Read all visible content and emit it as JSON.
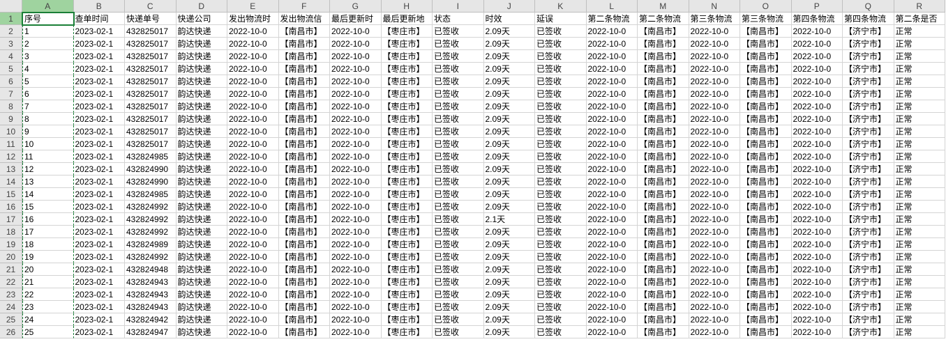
{
  "columns": [
    "A",
    "B",
    "C",
    "D",
    "E",
    "F",
    "G",
    "H",
    "I",
    "J",
    "K",
    "L",
    "M",
    "N",
    "O",
    "P",
    "Q",
    "R"
  ],
  "selected_column_index": 0,
  "active_cell": {
    "row": 0,
    "col": 0
  },
  "headers_row": [
    "序号",
    "查单时间",
    "快递单号",
    "快递公司",
    "发出物流时",
    "发出物流信",
    "最后更新时",
    "最后更新地",
    "状态",
    "时效",
    "延误",
    "第二条物流",
    "第二条物流",
    "第三条物流",
    "第三条物流",
    "第四条物流",
    "第四条物流",
    "第二条是否"
  ],
  "data_rows": [
    {
      "seq": "1",
      "query_time": "2023-02-1",
      "tracking": "432825017",
      "courier": "韵达快递",
      "send_time": "2022-10-0",
      "send_loc": "【南昌市】",
      "last_time": "2022-10-0",
      "last_loc": "【枣庄市】",
      "status": "已签收",
      "duration": "2.09天",
      "delay": "已签收",
      "t2": "2022-10-0",
      "l2": "【南昌市】",
      "t3": "2022-10-0",
      "l3": "【南昌市】",
      "t4": "2022-10-0",
      "l4": "【济宁市】",
      "f2": "正常",
      "tail": "正"
    },
    {
      "seq": "2",
      "query_time": "2023-02-1",
      "tracking": "432825017",
      "courier": "韵达快递",
      "send_time": "2022-10-0",
      "send_loc": "【南昌市】",
      "last_time": "2022-10-0",
      "last_loc": "【枣庄市】",
      "status": "已签收",
      "duration": "2.09天",
      "delay": "已签收",
      "t2": "2022-10-0",
      "l2": "【南昌市】",
      "t3": "2022-10-0",
      "l3": "【南昌市】",
      "t4": "2022-10-0",
      "l4": "【济宁市】",
      "f2": "正常",
      "tail": "正"
    },
    {
      "seq": "3",
      "query_time": "2023-02-1",
      "tracking": "432825017",
      "courier": "韵达快递",
      "send_time": "2022-10-0",
      "send_loc": "【南昌市】",
      "last_time": "2022-10-0",
      "last_loc": "【枣庄市】",
      "status": "已签收",
      "duration": "2.09天",
      "delay": "已签收",
      "t2": "2022-10-0",
      "l2": "【南昌市】",
      "t3": "2022-10-0",
      "l3": "【南昌市】",
      "t4": "2022-10-0",
      "l4": "【济宁市】",
      "f2": "正常",
      "tail": "正"
    },
    {
      "seq": "4",
      "query_time": "2023-02-1",
      "tracking": "432825017",
      "courier": "韵达快递",
      "send_time": "2022-10-0",
      "send_loc": "【南昌市】",
      "last_time": "2022-10-0",
      "last_loc": "【枣庄市】",
      "status": "已签收",
      "duration": "2.09天",
      "delay": "已签收",
      "t2": "2022-10-0",
      "l2": "【南昌市】",
      "t3": "2022-10-0",
      "l3": "【南昌市】",
      "t4": "2022-10-0",
      "l4": "【济宁市】",
      "f2": "正常",
      "tail": "正"
    },
    {
      "seq": "5",
      "query_time": "2023-02-1",
      "tracking": "432825017",
      "courier": "韵达快递",
      "send_time": "2022-10-0",
      "send_loc": "【南昌市】",
      "last_time": "2022-10-0",
      "last_loc": "【枣庄市】",
      "status": "已签收",
      "duration": "2.09天",
      "delay": "已签收",
      "t2": "2022-10-0",
      "l2": "【南昌市】",
      "t3": "2022-10-0",
      "l3": "【南昌市】",
      "t4": "2022-10-0",
      "l4": "【济宁市】",
      "f2": "正常",
      "tail": "正"
    },
    {
      "seq": "6",
      "query_time": "2023-02-1",
      "tracking": "432825017",
      "courier": "韵达快递",
      "send_time": "2022-10-0",
      "send_loc": "【南昌市】",
      "last_time": "2022-10-0",
      "last_loc": "【枣庄市】",
      "status": "已签收",
      "duration": "2.09天",
      "delay": "已签收",
      "t2": "2022-10-0",
      "l2": "【南昌市】",
      "t3": "2022-10-0",
      "l3": "【南昌市】",
      "t4": "2022-10-0",
      "l4": "【济宁市】",
      "f2": "正常",
      "tail": "正"
    },
    {
      "seq": "7",
      "query_time": "2023-02-1",
      "tracking": "432825017",
      "courier": "韵达快递",
      "send_time": "2022-10-0",
      "send_loc": "【南昌市】",
      "last_time": "2022-10-0",
      "last_loc": "【枣庄市】",
      "status": "已签收",
      "duration": "2.09天",
      "delay": "已签收",
      "t2": "2022-10-0",
      "l2": "【南昌市】",
      "t3": "2022-10-0",
      "l3": "【南昌市】",
      "t4": "2022-10-0",
      "l4": "【济宁市】",
      "f2": "正常",
      "tail": "正"
    },
    {
      "seq": "8",
      "query_time": "2023-02-1",
      "tracking": "432825017",
      "courier": "韵达快递",
      "send_time": "2022-10-0",
      "send_loc": "【南昌市】",
      "last_time": "2022-10-0",
      "last_loc": "【枣庄市】",
      "status": "已签收",
      "duration": "2.09天",
      "delay": "已签收",
      "t2": "2022-10-0",
      "l2": "【南昌市】",
      "t3": "2022-10-0",
      "l3": "【南昌市】",
      "t4": "2022-10-0",
      "l4": "【济宁市】",
      "f2": "正常",
      "tail": "正"
    },
    {
      "seq": "9",
      "query_time": "2023-02-1",
      "tracking": "432825017",
      "courier": "韵达快递",
      "send_time": "2022-10-0",
      "send_loc": "【南昌市】",
      "last_time": "2022-10-0",
      "last_loc": "【枣庄市】",
      "status": "已签收",
      "duration": "2.09天",
      "delay": "已签收",
      "t2": "2022-10-0",
      "l2": "【南昌市】",
      "t3": "2022-10-0",
      "l3": "【南昌市】",
      "t4": "2022-10-0",
      "l4": "【济宁市】",
      "f2": "正常",
      "tail": "正"
    },
    {
      "seq": "10",
      "query_time": "2023-02-1",
      "tracking": "432825017",
      "courier": "韵达快递",
      "send_time": "2022-10-0",
      "send_loc": "【南昌市】",
      "last_time": "2022-10-0",
      "last_loc": "【枣庄市】",
      "status": "已签收",
      "duration": "2.09天",
      "delay": "已签收",
      "t2": "2022-10-0",
      "l2": "【南昌市】",
      "t3": "2022-10-0",
      "l3": "【南昌市】",
      "t4": "2022-10-0",
      "l4": "【济宁市】",
      "f2": "正常",
      "tail": "正"
    },
    {
      "seq": "11",
      "query_time": "2023-02-1",
      "tracking": "432824985",
      "courier": "韵达快递",
      "send_time": "2022-10-0",
      "send_loc": "【南昌市】",
      "last_time": "2022-10-0",
      "last_loc": "【枣庄市】",
      "status": "已签收",
      "duration": "2.09天",
      "delay": "已签收",
      "t2": "2022-10-0",
      "l2": "【南昌市】",
      "t3": "2022-10-0",
      "l3": "【南昌市】",
      "t4": "2022-10-0",
      "l4": "【济宁市】",
      "f2": "正常",
      "tail": "正"
    },
    {
      "seq": "12",
      "query_time": "2023-02-1",
      "tracking": "432824990",
      "courier": "韵达快递",
      "send_time": "2022-10-0",
      "send_loc": "【南昌市】",
      "last_time": "2022-10-0",
      "last_loc": "【枣庄市】",
      "status": "已签收",
      "duration": "2.09天",
      "delay": "已签收",
      "t2": "2022-10-0",
      "l2": "【南昌市】",
      "t3": "2022-10-0",
      "l3": "【南昌市】",
      "t4": "2022-10-0",
      "l4": "【济宁市】",
      "f2": "正常",
      "tail": "正"
    },
    {
      "seq": "13",
      "query_time": "2023-02-1",
      "tracking": "432824990",
      "courier": "韵达快递",
      "send_time": "2022-10-0",
      "send_loc": "【南昌市】",
      "last_time": "2022-10-0",
      "last_loc": "【枣庄市】",
      "status": "已签收",
      "duration": "2.09天",
      "delay": "已签收",
      "t2": "2022-10-0",
      "l2": "【南昌市】",
      "t3": "2022-10-0",
      "l3": "【南昌市】",
      "t4": "2022-10-0",
      "l4": "【济宁市】",
      "f2": "正常",
      "tail": "正"
    },
    {
      "seq": "14",
      "query_time": "2023-02-1",
      "tracking": "432824985",
      "courier": "韵达快递",
      "send_time": "2022-10-0",
      "send_loc": "【南昌市】",
      "last_time": "2022-10-0",
      "last_loc": "【枣庄市】",
      "status": "已签收",
      "duration": "2.09天",
      "delay": "已签收",
      "t2": "2022-10-0",
      "l2": "【南昌市】",
      "t3": "2022-10-0",
      "l3": "【南昌市】",
      "t4": "2022-10-0",
      "l4": "【济宁市】",
      "f2": "正常",
      "tail": "正"
    },
    {
      "seq": "15",
      "query_time": "2023-02-1",
      "tracking": "432824992",
      "courier": "韵达快递",
      "send_time": "2022-10-0",
      "send_loc": "【南昌市】",
      "last_time": "2022-10-0",
      "last_loc": "【枣庄市】",
      "status": "已签收",
      "duration": "2.09天",
      "delay": "已签收",
      "t2": "2022-10-0",
      "l2": "【南昌市】",
      "t3": "2022-10-0",
      "l3": "【南昌市】",
      "t4": "2022-10-0",
      "l4": "【济宁市】",
      "f2": "正常",
      "tail": "正"
    },
    {
      "seq": "16",
      "query_time": "2023-02-1",
      "tracking": "432824992",
      "courier": "韵达快递",
      "send_time": "2022-10-0",
      "send_loc": "【南昌市】",
      "last_time": "2022-10-0",
      "last_loc": "【枣庄市】",
      "status": "已签收",
      "duration": "2.1天",
      "delay": "已签收",
      "t2": "2022-10-0",
      "l2": "【南昌市】",
      "t3": "2022-10-0",
      "l3": "【南昌市】",
      "t4": "2022-10-0",
      "l4": "【济宁市】",
      "f2": "正常",
      "tail": "正"
    },
    {
      "seq": "17",
      "query_time": "2023-02-1",
      "tracking": "432824992",
      "courier": "韵达快递",
      "send_time": "2022-10-0",
      "send_loc": "【南昌市】",
      "last_time": "2022-10-0",
      "last_loc": "【枣庄市】",
      "status": "已签收",
      "duration": "2.09天",
      "delay": "已签收",
      "t2": "2022-10-0",
      "l2": "【南昌市】",
      "t3": "2022-10-0",
      "l3": "【南昌市】",
      "t4": "2022-10-0",
      "l4": "【济宁市】",
      "f2": "正常",
      "tail": "正"
    },
    {
      "seq": "18",
      "query_time": "2023-02-1",
      "tracking": "432824989",
      "courier": "韵达快递",
      "send_time": "2022-10-0",
      "send_loc": "【南昌市】",
      "last_time": "2022-10-0",
      "last_loc": "【枣庄市】",
      "status": "已签收",
      "duration": "2.09天",
      "delay": "已签收",
      "t2": "2022-10-0",
      "l2": "【南昌市】",
      "t3": "2022-10-0",
      "l3": "【南昌市】",
      "t4": "2022-10-0",
      "l4": "【济宁市】",
      "f2": "正常",
      "tail": "正"
    },
    {
      "seq": "19",
      "query_time": "2023-02-1",
      "tracking": "432824992",
      "courier": "韵达快递",
      "send_time": "2022-10-0",
      "send_loc": "【南昌市】",
      "last_time": "2022-10-0",
      "last_loc": "【枣庄市】",
      "status": "已签收",
      "duration": "2.09天",
      "delay": "已签收",
      "t2": "2022-10-0",
      "l2": "【南昌市】",
      "t3": "2022-10-0",
      "l3": "【南昌市】",
      "t4": "2022-10-0",
      "l4": "【济宁市】",
      "f2": "正常",
      "tail": "正"
    },
    {
      "seq": "20",
      "query_time": "2023-02-1",
      "tracking": "432824948",
      "courier": "韵达快递",
      "send_time": "2022-10-0",
      "send_loc": "【南昌市】",
      "last_time": "2022-10-0",
      "last_loc": "【枣庄市】",
      "status": "已签收",
      "duration": "2.09天",
      "delay": "已签收",
      "t2": "2022-10-0",
      "l2": "【南昌市】",
      "t3": "2022-10-0",
      "l3": "【南昌市】",
      "t4": "2022-10-0",
      "l4": "【济宁市】",
      "f2": "正常",
      "tail": "正"
    },
    {
      "seq": "21",
      "query_time": "2023-02-1",
      "tracking": "432824943",
      "courier": "韵达快递",
      "send_time": "2022-10-0",
      "send_loc": "【南昌市】",
      "last_time": "2022-10-0",
      "last_loc": "【枣庄市】",
      "status": "已签收",
      "duration": "2.09天",
      "delay": "已签收",
      "t2": "2022-10-0",
      "l2": "【南昌市】",
      "t3": "2022-10-0",
      "l3": "【南昌市】",
      "t4": "2022-10-0",
      "l4": "【济宁市】",
      "f2": "正常",
      "tail": "正"
    },
    {
      "seq": "22",
      "query_time": "2023-02-1",
      "tracking": "432824943",
      "courier": "韵达快递",
      "send_time": "2022-10-0",
      "send_loc": "【南昌市】",
      "last_time": "2022-10-0",
      "last_loc": "【枣庄市】",
      "status": "已签收",
      "duration": "2.09天",
      "delay": "已签收",
      "t2": "2022-10-0",
      "l2": "【南昌市】",
      "t3": "2022-10-0",
      "l3": "【南昌市】",
      "t4": "2022-10-0",
      "l4": "【济宁市】",
      "f2": "正常",
      "tail": "正"
    },
    {
      "seq": "23",
      "query_time": "2023-02-1",
      "tracking": "432824943",
      "courier": "韵达快递",
      "send_time": "2022-10-0",
      "send_loc": "【南昌市】",
      "last_time": "2022-10-0",
      "last_loc": "【枣庄市】",
      "status": "已签收",
      "duration": "2.09天",
      "delay": "已签收",
      "t2": "2022-10-0",
      "l2": "【南昌市】",
      "t3": "2022-10-0",
      "l3": "【南昌市】",
      "t4": "2022-10-0",
      "l4": "【济宁市】",
      "f2": "正常",
      "tail": "正"
    },
    {
      "seq": "24",
      "query_time": "2023-02-1",
      "tracking": "432824942",
      "courier": "韵达快递",
      "send_time": "2022-10-0",
      "send_loc": "【南昌市】",
      "last_time": "2022-10-0",
      "last_loc": "【枣庄市】",
      "status": "已签收",
      "duration": "2.09天",
      "delay": "已签收",
      "t2": "2022-10-0",
      "l2": "【南昌市】",
      "t3": "2022-10-0",
      "l3": "【南昌市】",
      "t4": "2022-10-0",
      "l4": "【济宁市】",
      "f2": "正常",
      "tail": "正"
    },
    {
      "seq": "25",
      "query_time": "2023-02-1",
      "tracking": "432824947",
      "courier": "韵达快递",
      "send_time": "2022-10-0",
      "send_loc": "【南昌市】",
      "last_time": "2022-10-0",
      "last_loc": "【枣庄市】",
      "status": "已签收",
      "duration": "2.09天",
      "delay": "已签收",
      "t2": "2022-10-0",
      "l2": "【南昌市】",
      "t3": "2022-10-0",
      "l3": "【南昌市】",
      "t4": "2022-10-0",
      "l4": "【济宁市】",
      "f2": "正常",
      "tail": "正"
    }
  ],
  "row_keys": [
    "seq",
    "query_time",
    "tracking",
    "courier",
    "send_time",
    "send_loc",
    "last_time",
    "last_loc",
    "status",
    "duration",
    "delay",
    "t2",
    "l2",
    "t3",
    "l3",
    "t4",
    "l4",
    "f2"
  ],
  "colors": {
    "header_bg": "#e6e6e6",
    "header_border": "#bfbfbf",
    "cell_border": "#d4d4d4",
    "selection_green": "#1a7f37",
    "selected_header_bg": "#9fd39f"
  }
}
